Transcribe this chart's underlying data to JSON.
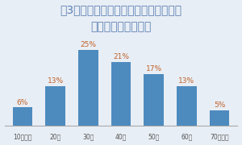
{
  "title_line1": "第3弾　ダスキン大掃除川柳コンテスト",
  "title_line2": "応募者年代別グラフ",
  "categories": [
    "10代以下",
    "20代",
    "30代",
    "40代",
    "50代",
    "60代",
    "70代以上"
  ],
  "values": [
    6,
    13,
    25,
    21,
    17,
    13,
    5
  ],
  "bar_color": "#4d8bbf",
  "label_color": "#c0622a",
  "title_color": "#5b7fb5",
  "background_color": "#e8eef5",
  "ylim": [
    0,
    30
  ],
  "bar_width": 0.6
}
